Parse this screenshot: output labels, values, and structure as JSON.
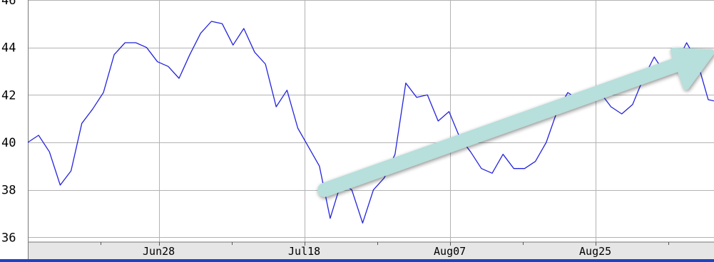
{
  "chart_data": {
    "type": "line",
    "title": "",
    "xlabel": "",
    "ylabel": "",
    "ylim": [
      35.8,
      46.0
    ],
    "y_ticks": [
      {
        "value": 36,
        "label": "36"
      },
      {
        "value": 38,
        "label": "38"
      },
      {
        "value": 40,
        "label": "40"
      },
      {
        "value": 42,
        "label": "42"
      },
      {
        "value": 44,
        "label": "44"
      },
      {
        "value": 46,
        "label": "46"
      }
    ],
    "x_ticks": [
      {
        "index": 18,
        "label": "Jun28"
      },
      {
        "index": 38,
        "label": "Jul18"
      },
      {
        "index": 58,
        "label": "Aug07"
      },
      {
        "index": 78,
        "label": "Aug25"
      }
    ],
    "x_minor_ticks": [
      10,
      28,
      48,
      68,
      88
    ],
    "grid": true,
    "series": [
      {
        "color": "#2323dd",
        "values": [
          40.0,
          40.3,
          39.6,
          38.2,
          38.8,
          40.8,
          41.4,
          42.1,
          43.7,
          44.2,
          44.2,
          44.0,
          43.4,
          43.2,
          42.7,
          43.7,
          44.6,
          45.1,
          45.0,
          44.1,
          44.8,
          43.8,
          43.3,
          41.5,
          42.2,
          40.6,
          39.8,
          39.0,
          36.8,
          38.3,
          38.0,
          36.6,
          38.0,
          38.5,
          39.5,
          42.5,
          41.9,
          42.0,
          40.9,
          41.3,
          40.2,
          39.6,
          38.9,
          38.7,
          39.5,
          38.9,
          38.9,
          39.2,
          40.0,
          41.3,
          42.1,
          41.8,
          41.8,
          42.1,
          41.5,
          41.2,
          41.6,
          42.7,
          43.6,
          42.9,
          43.3,
          44.2,
          43.4,
          41.8,
          41.7
        ],
        "x_index_span": [
          0,
          95
        ]
      }
    ],
    "annotation": {
      "type": "arrow",
      "color": "#b7dfdb",
      "from": {
        "x": 40.8,
        "y": 38.0
      },
      "to": {
        "x": 94.0,
        "y": 43.8
      }
    },
    "colors": {
      "plot_bg": "#ffffff",
      "grid": "#b3b3b3",
      "axis_strip": "#e6e6e6",
      "bottom_bar": "#1a44c4"
    }
  }
}
